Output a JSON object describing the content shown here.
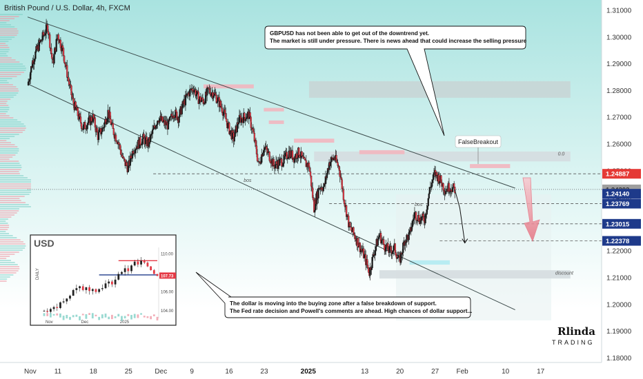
{
  "header": {
    "title": "British Pound / U.S. Dollar, 4h, FXCM"
  },
  "chart_data": {
    "type": "candlestick",
    "symbol": "GBPUSD",
    "timeframe": "4h",
    "ylim": [
      1.175,
      1.313
    ],
    "y_ticks": [
      "1.31000",
      "1.30000",
      "1.29000",
      "1.28000",
      "1.27000",
      "1.26000",
      "1.25000",
      "1.24000",
      "1.23000",
      "1.22000",
      "1.21000",
      "1.20000",
      "1.19000",
      "1.18000"
    ],
    "x_ticks": [
      {
        "label": "Nov",
        "x": 0.0
      },
      {
        "label": "11",
        "x": 6.0
      },
      {
        "label": "18",
        "x": 13.0
      },
      {
        "label": "25",
        "x": 20.0
      },
      {
        "label": "Dec",
        "x": 26.0
      },
      {
        "label": "9",
        "x": 33.0
      },
      {
        "label": "16",
        "x": 40.0
      },
      {
        "label": "23",
        "x": 47.0
      },
      {
        "label": "2025",
        "x": 55.0,
        "bold": true
      },
      {
        "label": "13",
        "x": 67.0
      },
      {
        "label": "20",
        "x": 74.0
      },
      {
        "label": "27",
        "x": 81.0
      },
      {
        "label": "Feb",
        "x": 86.0
      },
      {
        "label": "10",
        "x": 95.0
      },
      {
        "label": "17",
        "x": 102.0
      }
    ],
    "close_path": [
      [
        0,
        1.282
      ],
      [
        1,
        1.291
      ],
      [
        2,
        1.296
      ],
      [
        3,
        1.3
      ],
      [
        4,
        1.304
      ],
      [
        5,
        1.29
      ],
      [
        6,
        1.301
      ],
      [
        7,
        1.295
      ],
      [
        8,
        1.285
      ],
      [
        9,
        1.276
      ],
      [
        10,
        1.271
      ],
      [
        11,
        1.266
      ],
      [
        12,
        1.268
      ],
      [
        13,
        1.27
      ],
      [
        14,
        1.263
      ],
      [
        15,
        1.266
      ],
      [
        16,
        1.272
      ],
      [
        17,
        1.265
      ],
      [
        18,
        1.261
      ],
      [
        19,
        1.254
      ],
      [
        20,
        1.251
      ],
      [
        21,
        1.258
      ],
      [
        22,
        1.26
      ],
      [
        23,
        1.262
      ],
      [
        24,
        1.26
      ],
      [
        25,
        1.265
      ],
      [
        26,
        1.27
      ],
      [
        27,
        1.268
      ],
      [
        28,
        1.267
      ],
      [
        29,
        1.272
      ],
      [
        30,
        1.27
      ],
      [
        31,
        1.275
      ],
      [
        32,
        1.279
      ],
      [
        33,
        1.281
      ],
      [
        34,
        1.277
      ],
      [
        35,
        1.276
      ],
      [
        36,
        1.28
      ],
      [
        37,
        1.279
      ],
      [
        38,
        1.276
      ],
      [
        39,
        1.272
      ],
      [
        40,
        1.266
      ],
      [
        41,
        1.262
      ],
      [
        42,
        1.269
      ],
      [
        43,
        1.27
      ],
      [
        44,
        1.271
      ],
      [
        45,
        1.263
      ],
      [
        46,
        1.252
      ],
      [
        47,
        1.259
      ],
      [
        48,
        1.256
      ],
      [
        49,
        1.252
      ],
      [
        50,
        1.253
      ],
      [
        51,
        1.254
      ],
      [
        52,
        1.257
      ],
      [
        53,
        1.255
      ],
      [
        54,
        1.257
      ],
      [
        55,
        1.253
      ],
      [
        56,
        1.252
      ],
      [
        57,
        1.236
      ],
      [
        58,
        1.244
      ],
      [
        59,
        1.244
      ],
      [
        60,
        1.253
      ],
      [
        61,
        1.255
      ],
      [
        62,
        1.251
      ],
      [
        63,
        1.239
      ],
      [
        64,
        1.229
      ],
      [
        65,
        1.226
      ],
      [
        66,
        1.222
      ],
      [
        67,
        1.218
      ],
      [
        68,
        1.212
      ],
      [
        69,
        1.22
      ],
      [
        70,
        1.226
      ],
      [
        71,
        1.222
      ],
      [
        72,
        1.22
      ],
      [
        73,
        1.221
      ],
      [
        74,
        1.216
      ],
      [
        75,
        1.224
      ],
      [
        76,
        1.226
      ],
      [
        77,
        1.234
      ],
      [
        78,
        1.232
      ],
      [
        79,
        1.232
      ],
      [
        80,
        1.243
      ],
      [
        81,
        1.249
      ],
      [
        82,
        1.247
      ],
      [
        83,
        1.243
      ],
      [
        84,
        1.244
      ],
      [
        85,
        1.243
      ]
    ],
    "projection_path": [
      [
        85,
        1.243
      ],
      [
        86,
        1.236
      ],
      [
        87,
        1.223
      ]
    ],
    "channel": {
      "upper": [
        [
          0,
          1.3075
        ],
        [
          97,
          1.2435
        ]
      ],
      "lower": [
        [
          0,
          1.2825
        ],
        [
          97,
          1.198
        ]
      ]
    },
    "price_tags": [
      {
        "value": 1.24887,
        "label": "1.24887",
        "color": "#e53935"
      },
      {
        "value": 1.24303,
        "label": "1.24303",
        "color": "#9e9e9e"
      },
      {
        "value": 1.2414,
        "label": "1.24140",
        "color": "#1e3a8a"
      },
      {
        "value": 1.23769,
        "label": "1.23769",
        "color": "#1e3a8a"
      },
      {
        "value": 1.23015,
        "label": "1.23015",
        "color": "#1e3a8a"
      },
      {
        "value": 1.22378,
        "label": "1.22378",
        "color": "#1e3a8a"
      }
    ],
    "levels": [
      {
        "value": 1.24887,
        "style": "dashed",
        "from": 25,
        "to": 100
      },
      {
        "value": 1.24303,
        "style": "dotted",
        "from": 0,
        "to": 100
      },
      {
        "value": 1.23769,
        "style": "dashed",
        "from": 60,
        "to": 100
      },
      {
        "value": 1.23015,
        "style": "dashed",
        "from": 82,
        "to": 100
      },
      {
        "value": 1.22378,
        "style": "dashed",
        "from": 82,
        "to": 100
      }
    ],
    "zones": [
      {
        "x0": 56,
        "x1": 108,
        "y0": 1.2835,
        "y1": 1.2773,
        "color": "#c8d6d6"
      },
      {
        "x0": 57,
        "x1": 108,
        "y0": 1.2572,
        "y1": 1.2535,
        "color": "#d5dde0"
      },
      {
        "x0": 70,
        "x1": 108,
        "y0": 1.2128,
        "y1": 1.2097,
        "color": "#d5dde0"
      },
      {
        "x0": 35,
        "x1": 45,
        "y0": 1.2823,
        "y1": 1.2808,
        "color": "#f2b6bf"
      },
      {
        "x0": 47,
        "x1": 51,
        "y0": 1.2735,
        "y1": 1.2722,
        "color": "#f2b6bf"
      },
      {
        "x0": 48,
        "x1": 51,
        "y0": 1.2688,
        "y1": 1.2675,
        "color": "#f2b6bf"
      },
      {
        "x0": 53,
        "x1": 61,
        "y0": 1.262,
        "y1": 1.2605,
        "color": "#f2b6bf"
      },
      {
        "x0": 66,
        "x1": 75,
        "y0": 1.2577,
        "y1": 1.2562,
        "color": "#f2b6bf"
      },
      {
        "x0": 88,
        "x1": 96,
        "y0": 1.2525,
        "y1": 1.251,
        "color": "#f2b6bf"
      },
      {
        "x0": 76,
        "x1": 84,
        "y0": 1.2165,
        "y1": 1.2149,
        "color": "#b2ebf2"
      }
    ],
    "bos_labels": [
      {
        "text": "bos",
        "x": 43.0,
        "y": 1.2458
      },
      {
        "text": "bos",
        "x": 77.0,
        "y": 1.2368
      }
    ],
    "zone_labels": [
      {
        "text": "0.0",
        "x": 105.5,
        "y": 1.2558
      },
      {
        "text": "discount",
        "x": 105.0,
        "y": 1.2112
      }
    ],
    "false_breakout_label": "FalseBreakout",
    "note_top": {
      "line1": "GBPUSD has not been able to get out of the downtrend yet.",
      "line2": "The market is still under pressure. There is news ahead that could increase the selling pressure"
    },
    "note_bottom": {
      "line1": "The dollar is moving into the buying zone after a false breakdown of support.",
      "line2": "The Fed rate decision and Powell's comments are ahead. High chances of dollar support..."
    },
    "inset": {
      "title": "USD",
      "side_label": "DAILY",
      "y_ticks": [
        "110.00",
        "106.00",
        "104.00"
      ],
      "x_ticks": [
        "Nov",
        "Dec",
        "2025"
      ],
      "tag_value": "107.73",
      "values": [
        104.0,
        103.9,
        104.2,
        104.4,
        104.3,
        104.9,
        105.0,
        105.3,
        105.6,
        106.2,
        106.4,
        106.6,
        106.2,
        106.5,
        106.1,
        106.3,
        106.0,
        106.3,
        106.4,
        106.9,
        107.1,
        106.8,
        107.3,
        107.9,
        108.1,
        108.5,
        108.2,
        108.8,
        109.2,
        108.9,
        109.3,
        109.1,
        108.7,
        108.3,
        107.9,
        107.7
      ]
    }
  },
  "brand": {
    "logo_line1": "Rlinda",
    "logo_line2": "TRADING"
  }
}
